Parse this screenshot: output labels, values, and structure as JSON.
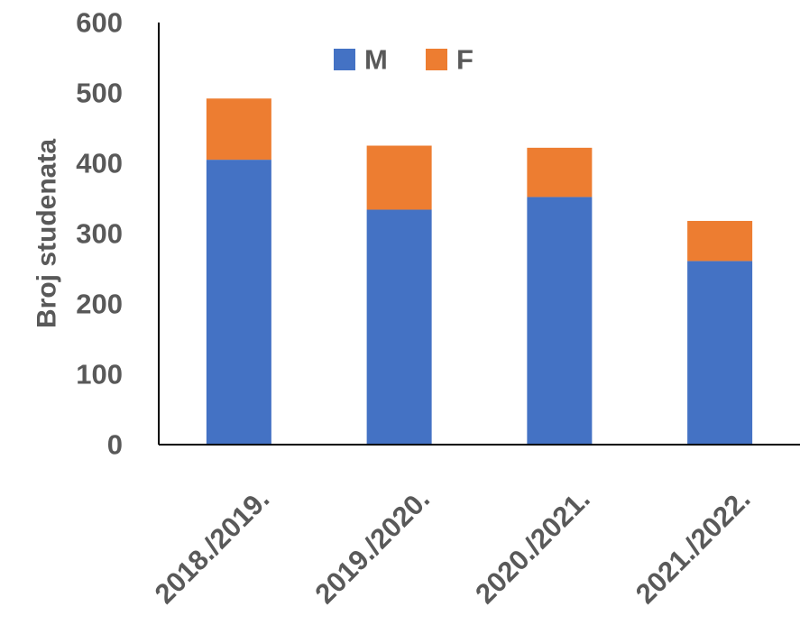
{
  "chart_data": {
    "type": "bar",
    "stacked": true,
    "title": "",
    "xlabel": "",
    "ylabel": "Broj studenata",
    "ylim": [
      0,
      600
    ],
    "yticks": [
      0,
      100,
      200,
      300,
      400,
      500,
      600
    ],
    "categories": [
      "2018./2019.",
      "2019./2020.",
      "2020./2021.",
      "2021./2022."
    ],
    "series": [
      {
        "name": "M",
        "values": [
          405,
          334,
          352,
          261
        ],
        "color": "#4472C4"
      },
      {
        "name": "F",
        "values": [
          87,
          91,
          70,
          57
        ],
        "color": "#ED7D31"
      }
    ],
    "grid": false,
    "legend_position": "top-center"
  }
}
